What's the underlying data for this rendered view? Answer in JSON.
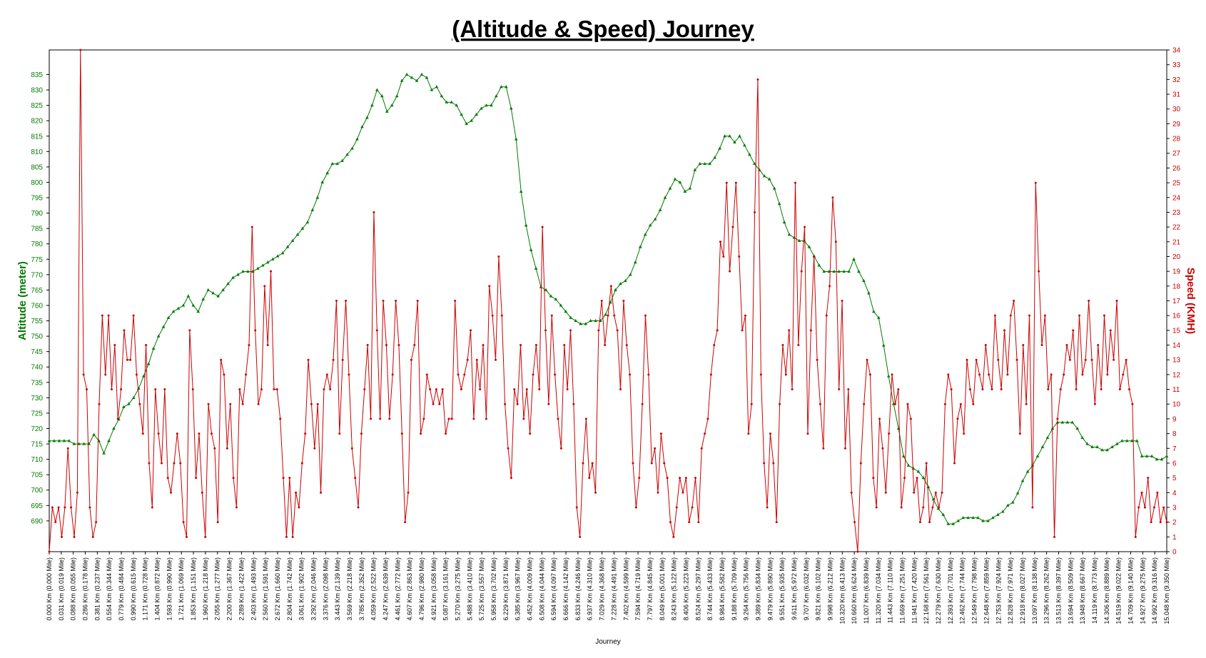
{
  "colors": {
    "altitude": "#007a00",
    "speed": "#cc0000",
    "axis": "#000000",
    "background": "#ffffff"
  },
  "chart_data": {
    "type": "line",
    "title": "(Altitude & Speed) Journey",
    "xlabel": "Journey",
    "ylabel_left": "Altitude (meter)",
    "ylabel_right": "Speed (KMH)",
    "ylim_left": [
      680,
      843
    ],
    "ylim_right": [
      0,
      34
    ],
    "yticks_left": [
      690,
      695,
      700,
      705,
      710,
      715,
      720,
      725,
      730,
      735,
      740,
      745,
      750,
      755,
      760,
      765,
      770,
      775,
      780,
      785,
      790,
      795,
      800,
      805,
      810,
      815,
      820,
      825,
      830,
      835
    ],
    "yticks_right": [
      0,
      1,
      2,
      3,
      4,
      5,
      6,
      7,
      8,
      9,
      10,
      11,
      12,
      13,
      14,
      15,
      16,
      17,
      18,
      19,
      20,
      21,
      22,
      23,
      24,
      25,
      26,
      27,
      28,
      29,
      30,
      31,
      32,
      33,
      34
    ],
    "grid": false,
    "legend": "none",
    "x_tick_labels": [
      "0.000 Km (0.000 Mile)",
      "0.031 Km (0.019 Mile)",
      "0.088 Km (0.055 Mile)",
      "0.286 Km (0.178 Mile)",
      "0.381 Km (0.237 Mile)",
      "0.554 Km (0.344 Mile)",
      "0.779 Km (0.484 Mile)",
      "0.990 Km (0.615 Mile)",
      "1.171 Km (0.728 Mile)",
      "1.404 Km (0.872 Mile)",
      "1.593 Km (0.990 Mile)",
      "1.721 Km (1.069 Mile)",
      "1.853 Km (1.151 Mile)",
      "1.960 Km (1.218 Mile)",
      "2.055 Km (1.277 Mile)",
      "2.200 Km (1.367 Mile)",
      "2.289 Km (1.422 Mile)",
      "2.403 Km (1.493 Mile)",
      "2.560 Km (1.591 Mile)",
      "2.672 Km (1.660 Mile)",
      "2.804 Km (1.742 Mile)",
      "3.061 Km (1.902 Mile)",
      "3.292 Km (2.046 Mile)",
      "3.376 Km (2.098 Mile)",
      "3.443 Km (2.139 Mile)",
      "3.569 Km (2.218 Mile)",
      "3.785 Km (2.352 Mile)",
      "4.059 Km (2.522 Mile)",
      "4.247 Km (2.639 Mile)",
      "4.461 Km (2.772 Mile)",
      "4.607 Km (2.863 Mile)",
      "4.796 Km (2.980 Mile)",
      "4.921 Km (3.058 Mile)",
      "5.087 Km (3.161 Mile)",
      "5.270 Km (3.275 Mile)",
      "5.488 Km (3.410 Mile)",
      "5.725 Km (3.557 Mile)",
      "5.958 Km (3.702 Mile)",
      "6.229 Km (3.871 Mile)",
      "6.385 Km (3.967 Mile)",
      "6.452 Km (4.009 Mile)",
      "6.508 Km (4.044 Mile)",
      "6.594 Km (4.097 Mile)",
      "6.666 Km (4.142 Mile)",
      "6.833 Km (4.246 Mile)",
      "6.937 Km (4.310 Mile)",
      "7.029 Km (4.368 Mile)",
      "7.228 Km (4.491 Mile)",
      "7.402 Km (4.599 Mile)",
      "7.594 Km (4.719 Mile)",
      "7.797 Km (4.845 Mile)",
      "8.049 Km (5.001 Mile)",
      "8.243 Km (5.122 Mile)",
      "8.406 Km (5.223 Mile)",
      "8.524 Km (5.297 Mile)",
      "8.744 Km (5.433 Mile)",
      "8.984 Km (5.582 Mile)",
      "9.188 Km (5.709 Mile)",
      "9.264 Km (5.756 Mile)",
      "9.389 Km (5.834 Mile)",
      "9.479 Km (5.890 Mile)",
      "9.551 Km (5.935 Mile)",
      "9.611 Km (5.972 Mile)",
      "9.707 Km (6.032 Mile)",
      "9.821 Km (6.102 Mile)",
      "9.998 Km (6.212 Mile)",
      "10.320 Km (6.413 Mile)",
      "10.660 Km (6.624 Mile)",
      "11.007 Km (6.839 Mile)",
      "11.320 Km (7.034 Mile)",
      "11.443 Km (7.110 Mile)",
      "11.669 Km (7.251 Mile)",
      "11.941 Km (7.420 Mile)",
      "12.168 Km (7.561 Mile)",
      "12.279 Km (7.630 Mile)",
      "12.393 Km (7.701 Mile)",
      "12.462 Km (7.744 Mile)",
      "12.549 Km (7.798 Mile)",
      "12.648 Km (7.859 Mile)",
      "12.753 Km (7.924 Mile)",
      "12.828 Km (7.971 Mile)",
      "12.918 Km (8.027 Mile)",
      "13.097 Km (8.138 Mile)",
      "13.296 Km (8.262 Mile)",
      "13.513 Km (8.397 Mile)",
      "13.694 Km (8.509 Mile)",
      "13.948 Km (8.667 Mile)",
      "14.119 Km (8.773 Mile)",
      "14.306 Km (8.889 Mile)",
      "14.519 Km (9.022 Mile)",
      "14.709 Km (9.140 Mile)",
      "14.927 Km (9.275 Mile)",
      "14.992 Km (9.316 Mile)",
      "15.048 Km (9.350 Mile)"
    ],
    "series": [
      {
        "name": "Altitude (meter)",
        "axis": "left",
        "style": "line-triangle-markers",
        "values": [
          716,
          716,
          716,
          716,
          716,
          715,
          715,
          715,
          715,
          718,
          716,
          712,
          716,
          720,
          723,
          727,
          728,
          730,
          733,
          737,
          741,
          746,
          750,
          753,
          756,
          758,
          759,
          760,
          763,
          760,
          758,
          762,
          765,
          764,
          763,
          765,
          767,
          769,
          770,
          771,
          771,
          771,
          772,
          773,
          774,
          775,
          776,
          777,
          779,
          781,
          783,
          785,
          787,
          791,
          795,
          800,
          803,
          806,
          806,
          807,
          809,
          811,
          814,
          818,
          821,
          825,
          830,
          828,
          823,
          825,
          828,
          833,
          835,
          834,
          833,
          835,
          834,
          830,
          831,
          828,
          826,
          826,
          825,
          822,
          819,
          820,
          822,
          824,
          825,
          825,
          828,
          831,
          831,
          824,
          814,
          797,
          786,
          778,
          772,
          766,
          765,
          763,
          762,
          760,
          758,
          756,
          755,
          754,
          754,
          755,
          755,
          755,
          757,
          761,
          765,
          767,
          768,
          770,
          774,
          779,
          783,
          786,
          788,
          791,
          795,
          798,
          801,
          800,
          797,
          798,
          804,
          806,
          806,
          806,
          808,
          811,
          815,
          815,
          813,
          815,
          812,
          809,
          806,
          804,
          802,
          801,
          798,
          793,
          787,
          783,
          782,
          781,
          781,
          779,
          776,
          773,
          771,
          771,
          771,
          771,
          771,
          771,
          775,
          771,
          768,
          764,
          758,
          756,
          747,
          737,
          728,
          720,
          711,
          708,
          707,
          706,
          704,
          701,
          697,
          694,
          692,
          689,
          689,
          690,
          691,
          691,
          691,
          691,
          690,
          690,
          691,
          692,
          693,
          695,
          696,
          699,
          703,
          706,
          708,
          711,
          714,
          717,
          720,
          722,
          722,
          722,
          722,
          720,
          717,
          715,
          714,
          714,
          713,
          713,
          714,
          715,
          716,
          716,
          716,
          716,
          711,
          711,
          711,
          710,
          710,
          711
        ]
      },
      {
        "name": "Speed (KMH)",
        "axis": "right",
        "style": "line-dot-markers",
        "values": [
          0,
          3,
          2,
          3,
          1,
          3,
          7,
          3,
          1,
          4,
          34,
          12,
          11,
          3,
          1,
          2,
          10,
          16,
          12,
          16,
          11,
          14,
          9,
          11,
          15,
          13,
          13,
          16,
          12,
          10,
          8,
          14,
          6,
          3,
          11,
          8,
          6,
          11,
          5,
          4,
          6,
          8,
          6,
          2,
          1,
          15,
          11,
          5,
          8,
          4,
          1,
          10,
          8,
          7,
          2,
          13,
          12,
          7,
          10,
          5,
          3,
          11,
          10,
          12,
          14,
          22,
          15,
          10,
          11,
          18,
          14,
          19,
          11,
          11,
          9,
          5,
          1,
          5,
          1,
          4,
          3,
          6,
          8,
          13,
          10,
          7,
          10,
          4,
          11,
          12,
          11,
          13,
          17,
          8,
          13,
          17,
          12,
          7,
          5,
          3,
          8,
          11,
          14,
          9,
          23,
          15,
          9,
          17,
          14,
          9,
          12,
          17,
          14,
          8,
          2,
          4,
          13,
          14,
          17,
          8,
          9,
          12,
          11,
          10,
          11,
          10,
          11,
          8,
          9,
          9,
          17,
          12,
          11,
          12,
          13,
          15,
          9,
          13,
          11,
          14,
          9,
          18,
          16,
          13,
          20,
          16,
          10,
          7,
          5,
          11,
          10,
          14,
          9,
          11,
          8,
          12,
          14,
          11,
          22,
          15,
          10,
          16,
          12,
          9,
          7,
          14,
          11,
          15,
          10,
          3,
          1,
          6,
          9,
          5,
          6,
          4,
          15,
          17,
          14,
          16,
          18,
          16,
          15,
          11,
          17,
          14,
          12,
          6,
          3,
          5,
          10,
          16,
          12,
          6,
          7,
          4,
          8,
          6,
          5,
          2,
          1,
          3,
          5,
          4,
          5,
          2,
          3,
          5,
          2,
          7,
          8,
          9,
          12,
          14,
          15,
          21,
          20,
          25,
          19,
          22,
          25,
          20,
          15,
          16,
          8,
          10,
          23,
          32,
          12,
          6,
          3,
          8,
          6,
          2,
          10,
          14,
          12,
          15,
          11,
          25,
          14,
          19,
          22,
          8,
          15,
          20,
          13,
          10,
          7,
          16,
          18,
          24,
          21,
          11,
          17,
          7,
          11,
          4,
          2,
          0,
          6,
          10,
          13,
          12,
          5,
          3,
          9,
          7,
          4,
          8,
          12,
          10,
          11,
          3,
          5,
          10,
          9,
          4,
          5,
          2,
          3,
          6,
          2,
          3,
          4,
          3,
          4,
          10,
          12,
          11,
          6,
          9,
          10,
          8,
          13,
          11,
          10,
          13,
          12,
          11,
          14,
          12,
          11,
          16,
          13,
          11,
          15,
          12,
          16,
          17,
          13,
          8,
          14,
          10,
          16,
          3,
          25,
          19,
          14,
          16,
          11,
          12,
          1,
          9,
          11,
          12,
          14,
          13,
          15,
          11,
          16,
          12,
          13,
          17,
          13,
          10,
          14,
          11,
          16,
          12,
          15,
          13,
          17,
          11,
          12,
          13,
          11,
          10,
          1,
          3,
          4,
          3,
          5,
          2,
          3,
          4,
          2,
          3,
          2
        ]
      }
    ]
  }
}
